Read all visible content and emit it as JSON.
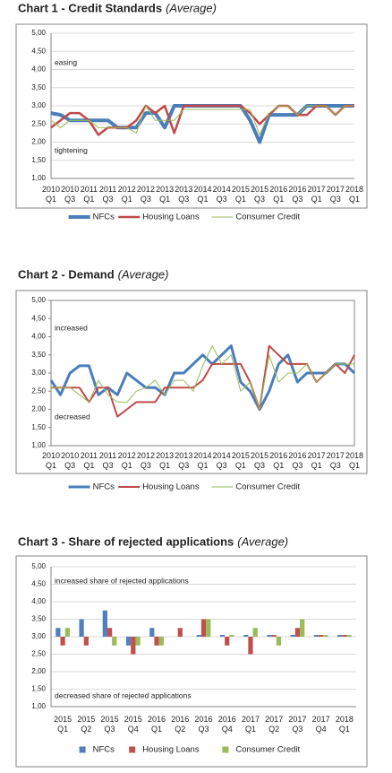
{
  "chart_data": [
    {
      "type": "line",
      "title": "Chart 1 - Credit Standards",
      "subtitle": "(Average)",
      "categories": [
        "2010 Q1",
        null,
        "2010 Q3",
        null,
        "2011 Q1",
        null,
        "2011 Q3",
        null,
        "2012 Q1",
        null,
        "2012 Q3",
        null,
        "2013 Q1",
        null,
        "2013 Q3",
        null,
        "2014 Q1",
        null,
        "2014 Q3",
        null,
        "2015 Q1",
        null,
        "2015 Q3",
        null,
        "2016 Q1",
        null,
        "2016 Q3",
        null,
        "2017 Q1",
        null,
        "2017 Q3",
        null,
        "2018 Q1"
      ],
      "series": [
        {
          "name": "NFCs",
          "color": "#4a7ebb",
          "linewidth": 4,
          "values": [
            2.8,
            2.75,
            2.6,
            2.6,
            2.6,
            2.6,
            2.6,
            2.4,
            2.4,
            2.4,
            2.8,
            2.8,
            2.4,
            3.0,
            3.0,
            3.0,
            3.0,
            3.0,
            3.0,
            3.0,
            3.0,
            2.6,
            2.0,
            2.75,
            2.75,
            2.75,
            2.75,
            3.0,
            3.0,
            3.0,
            3.0,
            3.0,
            3.0
          ]
        },
        {
          "name": "Housing Loans",
          "color": "#be4b48",
          "linewidth": 2.5,
          "values": [
            2.4,
            2.6,
            2.8,
            2.8,
            2.6,
            2.2,
            2.4,
            2.4,
            2.4,
            2.6,
            3.0,
            2.8,
            3.0,
            2.25,
            3.0,
            3.0,
            3.0,
            3.0,
            3.0,
            3.0,
            3.0,
            2.8,
            2.5,
            2.75,
            3.0,
            3.0,
            2.75,
            2.75,
            3.0,
            3.0,
            2.75,
            3.0,
            3.0
          ]
        },
        {
          "name": "Consumer Credit",
          "color": "#9bbb59",
          "linewidth": 1,
          "values": [
            2.6,
            2.4,
            2.6,
            2.6,
            2.6,
            2.4,
            2.4,
            2.4,
            2.4,
            2.25,
            3.0,
            2.6,
            2.6,
            2.6,
            2.9,
            2.9,
            2.9,
            2.9,
            2.9,
            2.9,
            2.9,
            2.9,
            2.2,
            2.8,
            3.0,
            3.0,
            2.75,
            3.0,
            3.0,
            3.0,
            2.75,
            3.0,
            3.0
          ]
        }
      ],
      "ylim": [
        1,
        5
      ],
      "yticks": [
        {
          "value": 1,
          "label": "1,00"
        },
        {
          "value": 1.5,
          "label": "1,50"
        },
        {
          "value": 2,
          "label": "2,00"
        },
        {
          "value": 2.5,
          "label": "2,50"
        },
        {
          "value": 3,
          "label": "3,00"
        },
        {
          "value": 3.5,
          "label": "3,50"
        },
        {
          "value": 4,
          "label": "4,00"
        },
        {
          "value": 4.5,
          "label": "4,50"
        },
        {
          "value": 5,
          "label": "5,00"
        }
      ],
      "grid": true,
      "legend": "bottom",
      "annotations": [
        "easing",
        "tightening"
      ]
    },
    {
      "type": "line",
      "title": "Chart 2 - Demand",
      "subtitle": "(Average)",
      "categories": [
        "2010 Q1",
        null,
        "2010 Q3",
        null,
        "2011 Q1",
        null,
        "2011 Q3",
        null,
        "2012 Q1",
        null,
        "2012 Q3",
        null,
        "2013 Q1",
        null,
        "2013 Q3",
        null,
        "2014 Q1",
        null,
        "2014 Q3",
        null,
        "2015 Q1",
        null,
        "2015 Q3",
        null,
        "2016 Q1",
        null,
        "2016 Q3",
        null,
        "2017 Q1",
        null,
        "2017 Q3",
        null,
        "2018 Q1"
      ],
      "series": [
        {
          "name": "NFCs",
          "color": "#4a7ebb",
          "linewidth": 3,
          "values": [
            2.8,
            2.4,
            3.0,
            3.2,
            3.2,
            2.4,
            2.6,
            2.4,
            3.0,
            2.8,
            2.6,
            2.6,
            2.4,
            3.0,
            3.0,
            3.25,
            3.5,
            3.25,
            3.5,
            3.75,
            2.75,
            2.5,
            2.0,
            2.5,
            3.25,
            3.5,
            2.75,
            3.0,
            3.0,
            3.0,
            3.25,
            3.25,
            3.0
          ]
        },
        {
          "name": "Housing Loans",
          "color": "#be4b48",
          "linewidth": 2,
          "values": [
            2.6,
            2.6,
            2.6,
            2.6,
            2.2,
            2.6,
            2.6,
            1.8,
            2.0,
            2.2,
            2.2,
            2.2,
            2.6,
            2.6,
            2.6,
            2.6,
            2.8,
            3.25,
            3.25,
            3.25,
            3.25,
            2.75,
            2.0,
            3.75,
            3.5,
            3.25,
            3.25,
            3.25,
            2.75,
            3.0,
            3.25,
            3.0,
            3.5
          ]
        },
        {
          "name": "Consumer Credit",
          "color": "#9bbb59",
          "linewidth": 1,
          "values": [
            2.6,
            2.6,
            2.6,
            2.4,
            2.2,
            2.8,
            2.4,
            2.2,
            2.2,
            2.5,
            2.6,
            2.8,
            2.4,
            2.8,
            2.8,
            2.5,
            3.2,
            3.75,
            3.25,
            3.5,
            2.5,
            2.75,
            2.0,
            3.5,
            2.75,
            3.0,
            3.0,
            3.25,
            2.75,
            3.0,
            3.25,
            3.25,
            3.25
          ]
        }
      ],
      "ylim": [
        1,
        5
      ],
      "yticks": [
        {
          "value": 1,
          "label": "1,00"
        },
        {
          "value": 1.5,
          "label": "1,50"
        },
        {
          "value": 2,
          "label": "2,00"
        },
        {
          "value": 2.5,
          "label": "2,50"
        },
        {
          "value": 3,
          "label": "3,00"
        },
        {
          "value": 3.5,
          "label": "3,50"
        },
        {
          "value": 4,
          "label": "4,00"
        },
        {
          "value": 4.5,
          "label": "4,50"
        },
        {
          "value": 5,
          "label": "5,00"
        }
      ],
      "grid": false,
      "legend": "bottom",
      "annotations": [
        "increased",
        "decreased"
      ]
    },
    {
      "type": "bar",
      "title": "Chart 3 - Share of rejected applications",
      "subtitle": "(Average)",
      "categories": [
        "2015 Q1",
        "2015 Q2",
        "2015 Q3",
        "2015 Q4",
        "2016 Q1",
        "2016 Q2",
        "2016 Q3",
        "2016 Q4",
        "2017 Q1",
        "2017 Q2",
        "2017 Q3",
        "2017 Q4",
        "2018 Q1"
      ],
      "series": [
        {
          "name": "NFCs",
          "color": "#4f81bd",
          "values": [
            3.25,
            3.5,
            3.75,
            2.75,
            3.25,
            3.0,
            3.05,
            3.05,
            3.05,
            3.05,
            3.05,
            3.05,
            3.05
          ]
        },
        {
          "name": "Housing Loans",
          "color": "#c0504d",
          "values": [
            2.75,
            2.75,
            3.25,
            2.5,
            2.75,
            3.25,
            3.5,
            2.75,
            2.5,
            3.05,
            3.25,
            3.05,
            3.05
          ]
        },
        {
          "name": "Consumer Credit",
          "color": "#9bbb59",
          "values": [
            3.25,
            3.0,
            2.75,
            2.75,
            2.75,
            3.0,
            3.5,
            3.05,
            3.25,
            2.75,
            3.5,
            3.05,
            3.05
          ]
        }
      ],
      "ylim": [
        1,
        5
      ],
      "yticks": [
        {
          "value": 1,
          "label": "1,00"
        },
        {
          "value": 1.5,
          "label": "1,50"
        },
        {
          "value": 2,
          "label": "2,00"
        },
        {
          "value": 2.5,
          "label": "2,50"
        },
        {
          "value": 3,
          "label": "3,00"
        },
        {
          "value": 3.5,
          "label": "3,50"
        },
        {
          "value": 4,
          "label": "4,00"
        },
        {
          "value": 4.5,
          "label": "4,50"
        },
        {
          "value": 5,
          "label": "5,00"
        }
      ],
      "bar_base": 3,
      "grid": true,
      "legend": "bottom",
      "annotations": [
        "increased share of rejected applications",
        "decreased share of rejected applications"
      ]
    }
  ]
}
